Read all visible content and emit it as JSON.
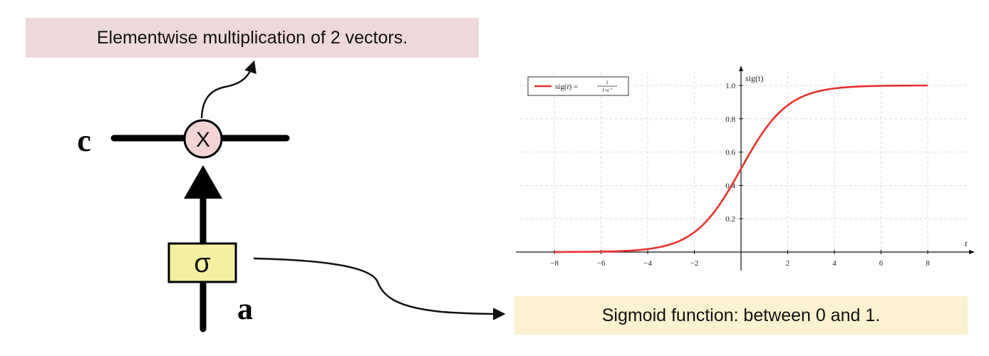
{
  "diagram": {
    "mult_callout": "Elementwise multiplication of 2 vectors.",
    "sigmoid_callout": "Sigmoid function: between 0 and 1.",
    "label_c": "c",
    "label_a": "a",
    "multiply_symbol": "X",
    "sigma_symbol": "σ",
    "colors": {
      "multiply_fill": "#f2d4d4",
      "sigma_fill": "#f5f0a0",
      "mult_callout_bg": "#efd8da",
      "sigmoid_callout_bg": "#fcf2cf",
      "curve": "#e8312f"
    }
  },
  "chart_data": {
    "type": "line",
    "function": "1/(1+exp(-t))",
    "xlabel": "t",
    "ylabel": "sig(t)",
    "xlim": [
      -9,
      9
    ],
    "ylim": [
      0,
      1.1
    ],
    "x_domain": [
      -8,
      8
    ],
    "x_ticks": [
      -8,
      -6,
      -4,
      -2,
      2,
      4,
      6,
      8
    ],
    "x_tick_labels": [
      "−8",
      "−6",
      "−4",
      "−2",
      "2",
      "4",
      "6",
      "8"
    ],
    "y_ticks": [
      0.2,
      0.4,
      0.6,
      0.8,
      1.0
    ],
    "y_tick_labels": [
      "0.2",
      "0.4",
      "0.6",
      "0.8",
      "1.0"
    ],
    "legend": {
      "label": "sig(t) = 1/(1+e^−t)",
      "position": "top-left"
    },
    "grid": true,
    "series": [
      {
        "name": "sig(t) = 1/(1+e^−t)",
        "color": "#e8312f"
      }
    ]
  }
}
